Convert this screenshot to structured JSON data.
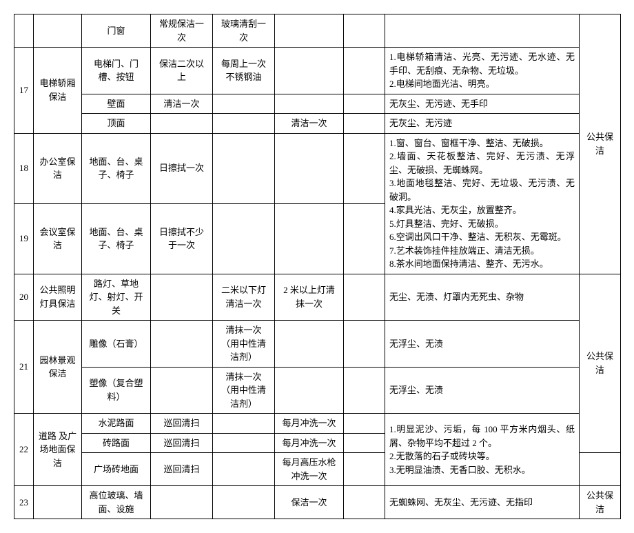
{
  "r0": {
    "c2": "门窗",
    "c3": "常规保洁一次",
    "c4": "玻璃清刮一次"
  },
  "r1": {
    "c0": "17",
    "c1": "电梯轿厢保洁",
    "c2": "电梯门、门槽、按钮",
    "c3": "保洁二次以上",
    "c4": "每周上一次不锈钢油",
    "c7": "1.电梯轿箱清洁、光亮、无污迹、无水迹、无手印、无刮痕、无杂物、无垃圾。\n2.电梯间地面光洁、明亮。"
  },
  "r2": {
    "c2": "壁面",
    "c3": "清洁一次",
    "c7": "无灰尘、无污迹、无手印"
  },
  "r3": {
    "c2": "顶面",
    "c5": "清洁一次",
    "c7": "无灰尘、无污迹"
  },
  "r4": {
    "c0": "18",
    "c1": "办公室保洁",
    "c2": "地面、台、桌子、椅子",
    "c3": "日擦拭一次",
    "c7": "1.窗、窗台、窗框干净、整洁、无破损。\n2.墙面、天花板整洁、完好、无污渍、无浮尘、无破损、无蜘蛛网。\n3.地面地毯整洁、完好、无垃圾、无污渍、无破洞。\n4.家具光洁、无灰尘，放置整齐。\n5.灯具整洁、完好、无破损。\n6.空调出风口干净、整洁、无积灰、无霉斑。\n7.艺术装饰挂件挂放端正、清洁无损。\n8.茶水间地面保持清洁、整齐、无污水。",
    "c8": "公共保洁"
  },
  "r5": {
    "c0": "19",
    "c1": "会议室保洁",
    "c2": "地面、台、桌子、椅子",
    "c3": "日擦拭不少于一次"
  },
  "r6": {
    "c0": "20",
    "c1": "公共照明灯具保洁",
    "c2": "路灯、草地灯、射灯、开关",
    "c4": "二米以下灯清洁一次",
    "c5": "2 米以上灯清抹一次",
    "c7": "无尘、无渍、灯罩内无死虫、杂物"
  },
  "r7": {
    "c0": "21",
    "c1": "园林景观保洁",
    "c2": "雕像（石膏）",
    "c4": "清抹一次（用中性清洁剂）",
    "c7": "无浮尘、无渍",
    "c8": "公共保洁"
  },
  "r8": {
    "c2": "塑像（复合塑料）",
    "c4": "清抹一次（用中性清洁剂）",
    "c7": "无浮尘、无渍"
  },
  "r9": {
    "c0": "22",
    "c1": "道路 及广场地面保洁",
    "c2": "水泥路面",
    "c3": "巡回清扫",
    "c5": "每月冲洗一次",
    "c7": "1.明显泥沙、污垢，每 100 平方米内烟头、纸屑、杂物平均不超过 2 个。\n2.无散落的石子或砖块等。\n3.无明显油渍、无香口胶、无积水。"
  },
  "r10": {
    "c2": "砖路面",
    "c3": "巡回清扫",
    "c5": "每月冲洗一次"
  },
  "r11": {
    "c2": "广场砖地面",
    "c3": "巡回清扫",
    "c5": "每月高压水枪冲洗一次"
  },
  "r12": {
    "c0": "23",
    "c2": "高位玻璃、墙面、设施",
    "c5": "保洁一次",
    "c7": "无蜘蛛网、无灰尘、无污迹、无指印",
    "c8": "公共保洁"
  }
}
